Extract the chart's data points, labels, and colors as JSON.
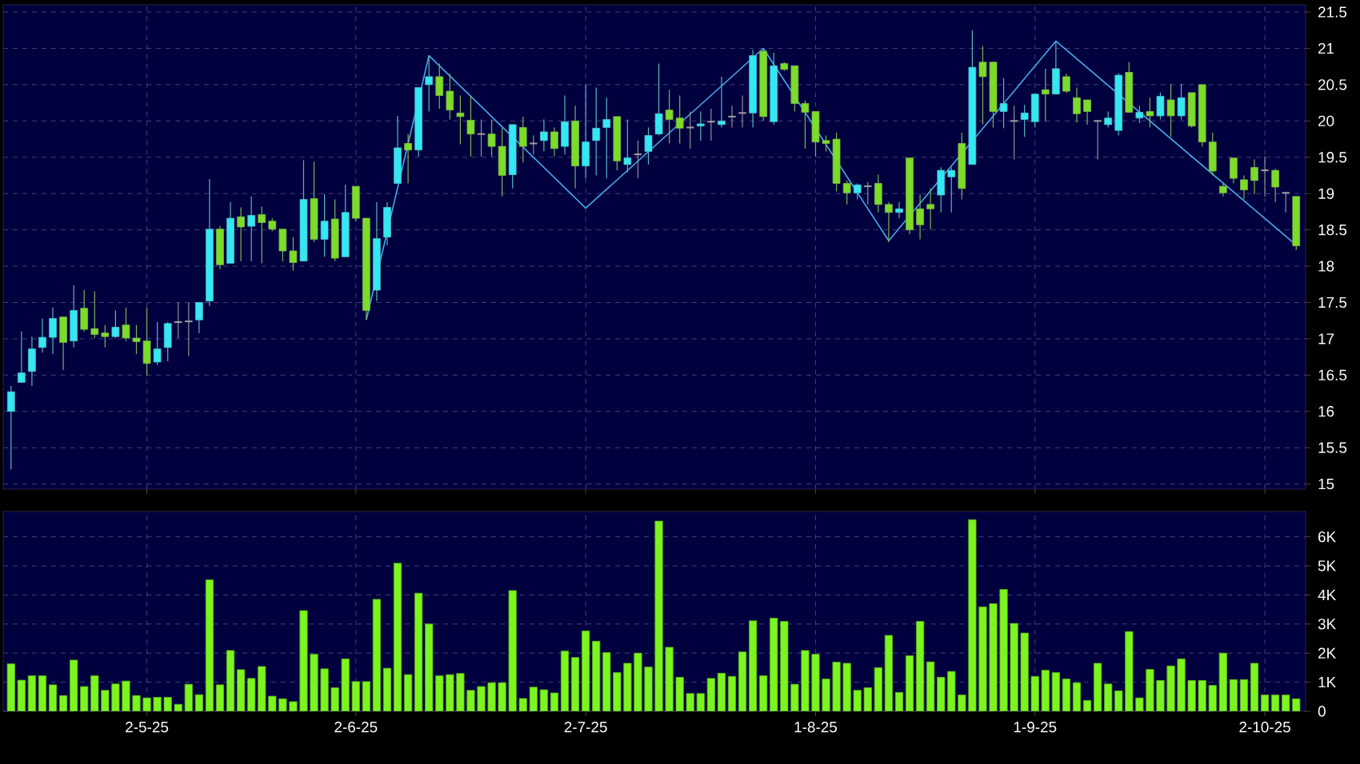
{
  "chart_data": [
    {
      "type": "candlestick",
      "categories": [
        null,
        null,
        null,
        null,
        null,
        null,
        null,
        null,
        null,
        null,
        null,
        null,
        null,
        null,
        null,
        null,
        null,
        null,
        null,
        null,
        null,
        null,
        null,
        null,
        null,
        null,
        null,
        null,
        null,
        null,
        null,
        null,
        null,
        null,
        null,
        null,
        null,
        null,
        null,
        null,
        null,
        null,
        null,
        null,
        null,
        null,
        null,
        null,
        null,
        null,
        null,
        null,
        null,
        null,
        null,
        null,
        null,
        null,
        null,
        null,
        null,
        null,
        null,
        null,
        null,
        null,
        null,
        null,
        null,
        null,
        null,
        null,
        null,
        null,
        null,
        null,
        null,
        null,
        null,
        null,
        null,
        null,
        null,
        null,
        null,
        null,
        null,
        null,
        null,
        null,
        null,
        null,
        null,
        null,
        null,
        null,
        null,
        null,
        null,
        null,
        null,
        null,
        null,
        null,
        null,
        null,
        null,
        null,
        null,
        null,
        null,
        null,
        null,
        null,
        null,
        null,
        null,
        null,
        null,
        null,
        null,
        null,
        null,
        null
      ],
      "ohlc": [
        [
          16.0,
          16.35,
          15.2,
          16.27
        ],
        [
          16.4,
          17.1,
          16.4,
          16.53
        ],
        [
          16.55,
          17.03,
          16.35,
          16.86
        ],
        [
          16.88,
          17.28,
          16.81,
          17.02
        ],
        [
          17.02,
          17.43,
          16.79,
          17.28
        ],
        [
          17.3,
          17.3,
          16.57,
          16.95
        ],
        [
          16.97,
          17.74,
          16.88,
          17.39
        ],
        [
          17.42,
          17.67,
          17.1,
          17.13
        ],
        [
          17.14,
          17.65,
          17.01,
          17.06
        ],
        [
          17.08,
          17.19,
          16.88,
          17.03
        ],
        [
          17.03,
          17.39,
          17.01,
          17.16
        ],
        [
          17.19,
          17.43,
          16.97,
          17.01
        ],
        [
          17.01,
          17.19,
          16.79,
          16.96
        ],
        [
          16.97,
          17.43,
          16.49,
          16.66
        ],
        [
          16.68,
          17.23,
          16.64,
          16.86
        ],
        [
          16.88,
          17.23,
          16.69,
          17.21
        ],
        [
          17.23,
          17.5,
          17.01,
          17.23
        ],
        [
          17.24,
          17.5,
          16.76,
          17.24
        ],
        [
          17.26,
          17.5,
          17.08,
          17.5
        ],
        [
          17.52,
          19.2,
          17.45,
          18.51
        ],
        [
          18.51,
          18.55,
          17.96,
          18.02
        ],
        [
          18.04,
          18.88,
          18.04,
          18.66
        ],
        [
          18.68,
          18.81,
          18.07,
          18.54
        ],
        [
          18.55,
          18.96,
          18.07,
          18.7
        ],
        [
          18.71,
          18.82,
          18.04,
          18.6
        ],
        [
          18.62,
          18.66,
          18.48,
          18.51
        ],
        [
          18.51,
          18.51,
          18.07,
          18.21
        ],
        [
          18.21,
          18.4,
          17.94,
          18.05
        ],
        [
          18.07,
          19.46,
          18.07,
          18.92
        ],
        [
          18.93,
          19.44,
          18.33,
          18.37
        ],
        [
          18.37,
          18.99,
          18.13,
          18.62
        ],
        [
          18.65,
          18.92,
          18.07,
          18.11
        ],
        [
          18.13,
          19.12,
          18.13,
          18.74
        ],
        [
          19.1,
          19.1,
          18.62,
          18.66
        ],
        [
          18.66,
          18.66,
          17.26,
          17.39
        ],
        [
          17.67,
          18.88,
          17.52,
          18.38
        ],
        [
          18.4,
          18.88,
          18.29,
          18.81
        ],
        [
          19.14,
          20.07,
          19.14,
          19.63
        ],
        [
          19.69,
          19.82,
          19.14,
          19.6
        ],
        [
          19.6,
          20.46,
          19.51,
          20.46
        ],
        [
          20.5,
          20.9,
          20.13,
          20.61
        ],
        [
          20.61,
          20.79,
          20.17,
          20.35
        ],
        [
          20.41,
          20.65,
          20.02,
          20.15
        ],
        [
          20.11,
          20.35,
          19.68,
          20.06
        ],
        [
          20.01,
          20.35,
          19.51,
          19.82
        ],
        [
          19.82,
          20.02,
          19.51,
          19.82
        ],
        [
          19.82,
          20.02,
          19.51,
          19.65
        ],
        [
          19.65,
          19.91,
          18.96,
          19.25
        ],
        [
          19.26,
          19.95,
          19.07,
          19.95
        ],
        [
          19.91,
          20.06,
          19.43,
          19.65
        ],
        [
          19.69,
          19.8,
          19.54,
          19.69
        ],
        [
          19.73,
          20.02,
          19.58,
          19.85
        ],
        [
          19.85,
          19.91,
          19.51,
          19.62
        ],
        [
          19.65,
          20.35,
          19.54,
          19.99
        ],
        [
          20.0,
          20.21,
          19.07,
          19.38
        ],
        [
          19.38,
          20.5,
          19.21,
          19.71
        ],
        [
          19.73,
          20.46,
          19.25,
          19.9
        ],
        [
          19.91,
          20.32,
          19.21,
          20.02
        ],
        [
          20.06,
          20.06,
          19.32,
          19.45
        ],
        [
          19.4,
          20.02,
          19.29,
          19.49
        ],
        [
          19.54,
          19.73,
          19.21,
          19.54
        ],
        [
          19.58,
          19.91,
          19.4,
          19.8
        ],
        [
          19.82,
          20.79,
          19.8,
          20.1
        ],
        [
          20.15,
          20.43,
          19.69,
          20.02
        ],
        [
          20.04,
          20.35,
          19.69,
          19.9
        ],
        [
          19.91,
          20.13,
          19.62,
          19.91
        ],
        [
          19.93,
          20.13,
          19.73,
          19.96
        ],
        [
          19.99,
          20.17,
          19.73,
          19.99
        ],
        [
          19.95,
          20.61,
          19.91,
          20.0
        ],
        [
          20.06,
          20.21,
          19.91,
          20.06
        ],
        [
          20.11,
          20.35,
          19.91,
          20.11
        ],
        [
          20.11,
          20.98,
          19.91,
          20.9
        ],
        [
          20.96,
          21.0,
          20.0,
          20.06
        ],
        [
          19.99,
          20.94,
          19.95,
          20.76
        ],
        [
          20.79,
          20.81,
          20.69,
          20.71
        ],
        [
          20.76,
          20.76,
          20.13,
          20.24
        ],
        [
          20.24,
          20.28,
          19.62,
          20.12
        ],
        [
          20.13,
          20.13,
          19.51,
          19.71
        ],
        [
          19.73,
          19.8,
          19.58,
          19.69
        ],
        [
          19.75,
          19.84,
          19.03,
          19.14
        ],
        [
          19.14,
          19.18,
          18.85,
          19.01
        ],
        [
          19.01,
          19.14,
          18.92,
          19.12
        ],
        [
          19.1,
          19.16,
          18.85,
          19.1
        ],
        [
          19.14,
          19.26,
          18.74,
          18.85
        ],
        [
          18.85,
          18.88,
          18.33,
          18.74
        ],
        [
          18.74,
          18.88,
          18.66,
          18.79
        ],
        [
          19.49,
          19.49,
          18.44,
          18.5
        ],
        [
          18.79,
          18.99,
          18.37,
          18.57
        ],
        [
          18.85,
          19.07,
          18.51,
          18.79
        ],
        [
          18.98,
          19.36,
          18.74,
          19.32
        ],
        [
          19.23,
          19.36,
          18.74,
          19.32
        ],
        [
          19.69,
          19.84,
          18.92,
          19.07
        ],
        [
          19.4,
          21.25,
          19.4,
          20.74
        ],
        [
          20.81,
          21.03,
          19.95,
          20.61
        ],
        [
          20.81,
          20.81,
          19.91,
          20.13
        ],
        [
          20.13,
          20.59,
          19.9,
          20.24
        ],
        [
          20.0,
          20.21,
          19.47,
          20.0
        ],
        [
          20.02,
          20.22,
          19.78,
          20.11
        ],
        [
          19.99,
          20.37,
          19.91,
          20.37
        ],
        [
          20.43,
          20.72,
          19.99,
          20.37
        ],
        [
          20.37,
          21.09,
          20.37,
          20.72
        ],
        [
          20.61,
          20.65,
          20.39,
          20.41
        ],
        [
          20.32,
          20.46,
          19.98,
          20.1
        ],
        [
          20.29,
          20.29,
          19.95,
          20.13
        ],
        [
          20.0,
          20.0,
          19.47,
          20.0
        ],
        [
          19.95,
          20.13,
          19.91,
          20.04
        ],
        [
          19.87,
          20.66,
          19.8,
          20.63
        ],
        [
          20.67,
          20.81,
          20.12,
          20.12
        ],
        [
          20.04,
          20.21,
          19.97,
          20.12
        ],
        [
          20.13,
          20.32,
          19.91,
          20.07
        ],
        [
          20.07,
          20.39,
          20.02,
          20.34
        ],
        [
          20.29,
          20.51,
          19.78,
          20.07
        ],
        [
          20.07,
          20.51,
          20.02,
          20.32
        ],
        [
          20.39,
          20.39,
          19.91,
          19.93
        ],
        [
          20.5,
          20.5,
          19.65,
          19.71
        ],
        [
          19.71,
          19.84,
          19.25,
          19.31
        ],
        [
          19.1,
          19.14,
          18.96,
          19.01
        ],
        [
          19.49,
          19.49,
          19.14,
          19.21
        ],
        [
          19.19,
          19.25,
          18.92,
          19.05
        ],
        [
          19.36,
          19.47,
          18.99,
          19.18
        ],
        [
          19.32,
          19.51,
          18.96,
          19.32
        ],
        [
          19.32,
          19.34,
          18.88,
          19.09
        ],
        [
          19.01,
          19.01,
          18.74,
          19.01
        ],
        [
          18.96,
          18.96,
          18.22,
          18.28
        ]
      ],
      "colors": [
        "#33e8f2",
        "#33e8f2",
        "#33e8f2",
        "#33e8f2",
        "#33e8f2",
        "#7cdc28",
        "#33e8f2",
        "#7cdc28",
        "#7cdc28",
        "#7cdc28",
        "#33e8f2",
        "#7cdc28",
        "#7cdc28",
        "#7cdc28",
        "#33e8f2",
        "#33e8f2",
        "#a0a0a0",
        "#a0a0a0",
        "#33e8f2",
        "#33e8f2",
        "#7cdc28",
        "#33e8f2",
        "#7cdc28",
        "#33e8f2",
        "#7cdc28",
        "#7cdc28",
        "#7cdc28",
        "#7cdc28",
        "#33e8f2",
        "#7cdc28",
        "#33e8f2",
        "#7cdc28",
        "#33e8f2",
        "#7cdc28",
        "#7cdc28",
        "#33e8f2",
        "#33e8f2",
        "#33e8f2",
        "#7cdc28",
        "#33e8f2",
        "#33e8f2",
        "#7cdc28",
        "#7cdc28",
        "#7cdc28",
        "#7cdc28",
        "#a0a0a0",
        "#7cdc28",
        "#7cdc28",
        "#33e8f2",
        "#7cdc28",
        "#a0a0a0",
        "#33e8f2",
        "#7cdc28",
        "#33e8f2",
        "#7cdc28",
        "#33e8f2",
        "#33e8f2",
        "#33e8f2",
        "#7cdc28",
        "#33e8f2",
        "#a0a0a0",
        "#33e8f2",
        "#33e8f2",
        "#7cdc28",
        "#7cdc28",
        "#a0a0a0",
        "#33e8f2",
        "#a0a0a0",
        "#33e8f2",
        "#a0a0a0",
        "#a0a0a0",
        "#33e8f2",
        "#7cdc28",
        "#33e8f2",
        "#7cdc28",
        "#7cdc28",
        "#7cdc28",
        "#7cdc28",
        "#7cdc28",
        "#7cdc28",
        "#7cdc28",
        "#33e8f2",
        "#a0a0a0",
        "#7cdc28",
        "#7cdc28",
        "#33e8f2",
        "#7cdc28",
        "#7cdc28",
        "#7cdc28",
        "#33e8f2",
        "#33e8f2",
        "#7cdc28",
        "#33e8f2",
        "#7cdc28",
        "#7cdc28",
        "#33e8f2",
        "#a0a0a0",
        "#33e8f2",
        "#33e8f2",
        "#7cdc28",
        "#33e8f2",
        "#7cdc28",
        "#7cdc28",
        "#7cdc28",
        "#a0a0a0",
        "#33e8f2",
        "#33e8f2",
        "#7cdc28",
        "#33e8f2",
        "#7cdc28",
        "#33e8f2",
        "#7cdc28",
        "#33e8f2",
        "#7cdc28",
        "#7cdc28",
        "#7cdc28",
        "#7cdc28",
        "#7cdc28",
        "#7cdc28",
        "#7cdc28",
        "#a0a0a0",
        "#7cdc28",
        "#a0a0a0",
        "#7cdc28"
      ],
      "series": [
        {
          "type": "line",
          "color": "#4aa8e8",
          "values": [
            null,
            null,
            null,
            null,
            null,
            null,
            null,
            null,
            null,
            null,
            null,
            null,
            null,
            null,
            null,
            null,
            null,
            null,
            null,
            null,
            null,
            null,
            null,
            null,
            null,
            null,
            null,
            null,
            null,
            null,
            null,
            null,
            null,
            null,
            17.26,
            null,
            null,
            null,
            null,
            null,
            20.9,
            null,
            null,
            null,
            null,
            null,
            null,
            null,
            null,
            null,
            null,
            null,
            null,
            null,
            null,
            18.8,
            null,
            null,
            null,
            null,
            null,
            null,
            null,
            null,
            null,
            null,
            null,
            null,
            null,
            null,
            null,
            null,
            21.0,
            null,
            null,
            null,
            null,
            null,
            null,
            null,
            null,
            null,
            null,
            null,
            18.35,
            null,
            null,
            null,
            null,
            null,
            null,
            null,
            null,
            null,
            null,
            null,
            null,
            null,
            null,
            null,
            21.1,
            null,
            null,
            null,
            null,
            null,
            null,
            null,
            null,
            null,
            null,
            null,
            null,
            null,
            null,
            null,
            null,
            null,
            null,
            null,
            null,
            null,
            null,
            18.29
          ]
        }
      ],
      "ylim": [
        14.93,
        21.6
      ],
      "yticks": [
        15,
        15.5,
        16,
        16.5,
        17,
        17.5,
        18,
        18.5,
        19,
        19.5,
        20,
        20.5,
        21,
        21.5
      ],
      "grid": true,
      "tick_labels": "y"
    },
    {
      "type": "bar",
      "categories": [
        null,
        null,
        null,
        null,
        null,
        null,
        null,
        null,
        null,
        null,
        null,
        null,
        null,
        "2-5-25",
        null,
        null,
        null,
        null,
        null,
        null,
        null,
        null,
        null,
        null,
        null,
        null,
        null,
        null,
        null,
        null,
        null,
        null,
        null,
        "2-6-25",
        null,
        null,
        null,
        null,
        null,
        null,
        null,
        null,
        null,
        null,
        null,
        null,
        null,
        null,
        null,
        null,
        null,
        null,
        null,
        null,
        null,
        "2-7-25",
        null,
        null,
        null,
        null,
        null,
        null,
        null,
        null,
        null,
        null,
        null,
        null,
        null,
        null,
        null,
        null,
        null,
        null,
        null,
        null,
        null,
        "1-8-25",
        null,
        null,
        null,
        null,
        null,
        null,
        null,
        null,
        null,
        null,
        null,
        null,
        null,
        null,
        null,
        null,
        null,
        null,
        null,
        null,
        "1-9-25",
        null,
        null,
        null,
        null,
        null,
        null,
        null,
        null,
        null,
        null,
        null,
        null,
        null,
        null,
        null,
        null,
        null,
        null,
        null,
        null,
        null,
        "2-10-25",
        null,
        null,
        null
      ],
      "values": [
        1630,
        1070,
        1220,
        1220,
        910,
        540,
        1760,
        850,
        1220,
        720,
        940,
        1040,
        540,
        460,
        480,
        480,
        240,
        930,
        570,
        4520,
        910,
        2090,
        1430,
        1130,
        1540,
        520,
        430,
        330,
        3460,
        1960,
        1460,
        810,
        1800,
        1020,
        1020,
        3850,
        1480,
        5090,
        1260,
        4060,
        3000,
        1220,
        1260,
        1300,
        720,
        850,
        980,
        980,
        4150,
        440,
        830,
        740,
        630,
        2070,
        1850,
        2760,
        2410,
        2020,
        1330,
        1650,
        2000,
        1520,
        6540,
        2200,
        1170,
        610,
        610,
        1130,
        1310,
        1200,
        2040,
        3110,
        1220,
        3200,
        3090,
        930,
        2090,
        1960,
        1110,
        1690,
        1650,
        720,
        810,
        1500,
        2610,
        650,
        1910,
        3090,
        1700,
        1170,
        1370,
        560,
        6590,
        3590,
        3700,
        4190,
        3020,
        2690,
        1200,
        1410,
        1330,
        1110,
        980,
        370,
        1650,
        940,
        700,
        2740,
        460,
        1440,
        1060,
        1560,
        1800,
        1060,
        1060,
        890,
        2000,
        1090,
        1090,
        1650,
        560,
        560,
        560,
        430
      ],
      "color": "#7cf51e",
      "ylim": [
        0,
        6870
      ],
      "yticks": [
        0,
        {
          "value": 1000,
          "label": "1K"
        },
        {
          "value": 2000,
          "label": "2K"
        },
        {
          "value": 3000,
          "label": "3K"
        },
        {
          "value": 4000,
          "label": "4K"
        },
        {
          "value": 5000,
          "label": "5K"
        },
        {
          "value": 6000,
          "label": "6K"
        }
      ],
      "grid": true
    }
  ]
}
